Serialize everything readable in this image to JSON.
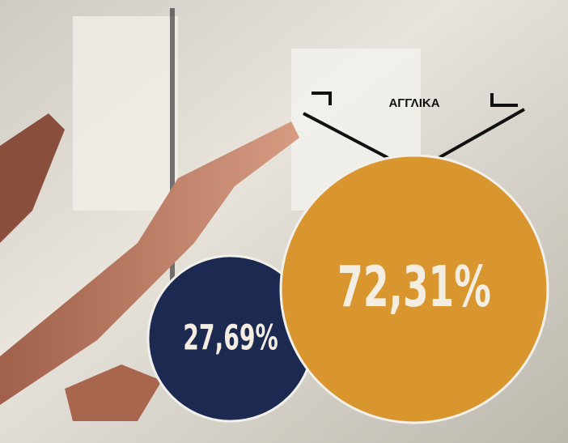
{
  "chart_data": {
    "type": "bubble",
    "title": "ΑΓΓΛΙΚΑ",
    "values": [
      72.31,
      27.69
    ],
    "value_labels": [
      "72,31%",
      "27,69%"
    ],
    "colors": [
      "#d9962f",
      "#1c2a52"
    ]
  }
}
